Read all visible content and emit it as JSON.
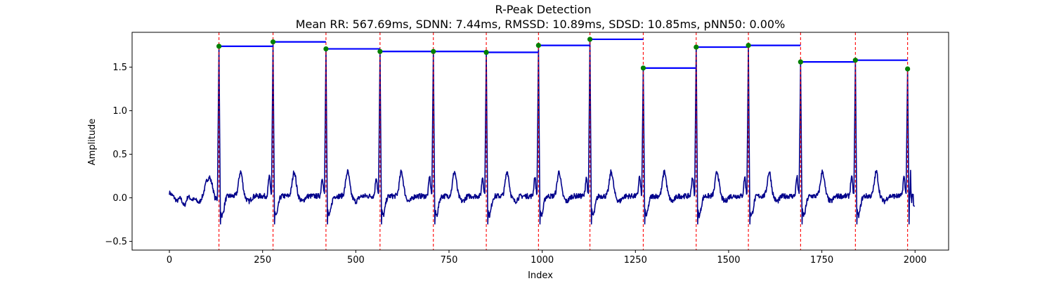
{
  "chart_data": {
    "type": "line",
    "title": "R-Peak Detection",
    "subtitle": "Mean RR: 567.69ms, SDNN: 7.44ms, RMSSD: 10.89ms, SDSD: 10.85ms, pNN50: 0.00%",
    "xlabel": "Index",
    "ylabel": "Amplitude",
    "xlim": [
      -100,
      2090
    ],
    "ylim": [
      -0.6,
      1.9
    ],
    "x_ticks": [
      0,
      250,
      500,
      750,
      1000,
      1250,
      1500,
      1750,
      2000
    ],
    "y_ticks": [
      -0.5,
      0.0,
      0.5,
      1.0,
      1.5
    ],
    "y_tick_labels": [
      "−0.5",
      "0.0",
      "0.5",
      "1.0",
      "1.5"
    ],
    "grid": false,
    "colors": {
      "signal": "#00008b",
      "peak_lines": "#ff0000",
      "peaks": "#008000",
      "rr_segments": "#0000ff"
    },
    "signal_length": 2000,
    "baseline_waveform": [
      [
        0,
        0.06
      ],
      [
        10,
        0.02
      ],
      [
        20,
        -0.04
      ],
      [
        30,
        0.0
      ],
      [
        40,
        -0.1
      ],
      [
        50,
        0.02
      ],
      [
        60,
        -0.02
      ],
      [
        70,
        -0.02
      ],
      [
        80,
        -0.06
      ],
      [
        90,
        0.03
      ],
      [
        100,
        0.2
      ],
      [
        108,
        0.24
      ],
      [
        115,
        0.15
      ],
      [
        122,
        0.0
      ],
      [
        128,
        -0.02
      ]
    ],
    "r_peaks": {
      "index": [
        133,
        278,
        420,
        565,
        708,
        850,
        990,
        1128,
        1271,
        1413,
        1553,
        1693,
        1840,
        1980
      ],
      "amplitude": [
        1.74,
        1.79,
        1.71,
        1.68,
        1.68,
        1.67,
        1.75,
        1.82,
        1.49,
        1.73,
        1.75,
        1.56,
        1.58,
        1.48
      ]
    },
    "rr_segments": [
      {
        "x": [
          133,
          278
        ],
        "y": 1.74
      },
      {
        "x": [
          278,
          420
        ],
        "y": 1.79
      },
      {
        "x": [
          420,
          565
        ],
        "y": 1.71
      },
      {
        "x": [
          565,
          708
        ],
        "y": 1.68
      },
      {
        "x": [
          708,
          850
        ],
        "y": 1.68
      },
      {
        "x": [
          850,
          990
        ],
        "y": 1.67
      },
      {
        "x": [
          990,
          1128
        ],
        "y": 1.75
      },
      {
        "x": [
          1128,
          1271
        ],
        "y": 1.82
      },
      {
        "x": [
          1271,
          1413
        ],
        "y": 1.49
      },
      {
        "x": [
          1413,
          1553
        ],
        "y": 1.73
      },
      {
        "x": [
          1553,
          1693
        ],
        "y": 1.75
      },
      {
        "x": [
          1693,
          1840
        ],
        "y": 1.56
      },
      {
        "x": [
          1840,
          1980
        ],
        "y": 1.58
      }
    ]
  }
}
